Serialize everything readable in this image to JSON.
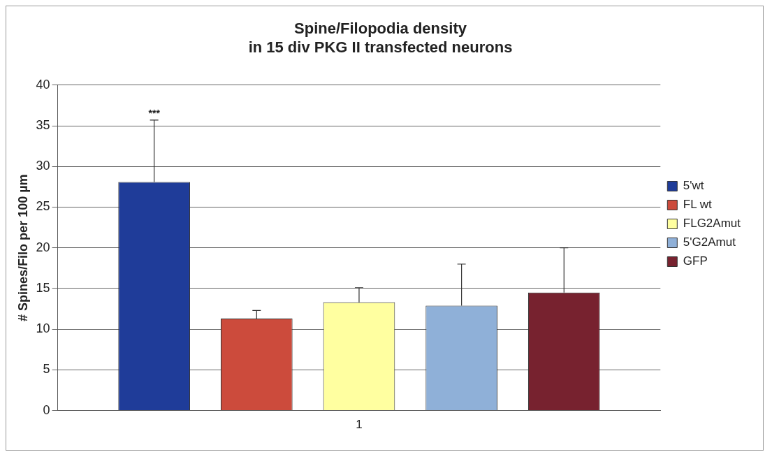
{
  "chart_data": {
    "type": "bar",
    "title": "Spine/Filopodia density\nin 15 div PKG II transfected neurons",
    "ylabel": "# Spines/Filo per 100 µm",
    "categories": [
      "1"
    ],
    "series": [
      {
        "name": "5'wt",
        "color": "#1f3c99",
        "values": [
          28.1
        ],
        "errors": [
          [
            28.1,
            35.7
          ]
        ]
      },
      {
        "name": "FL wt",
        "color": "#cc4b3c",
        "values": [
          11.3
        ],
        "errors": [
          [
            11.3,
            12.3
          ]
        ]
      },
      {
        "name": "FLG2Amut",
        "color": "#ffffa0",
        "values": [
          13.3
        ],
        "errors": [
          [
            13.3,
            15.1
          ]
        ]
      },
      {
        "name": "5'G2Amut",
        "color": "#8fb0d8",
        "values": [
          12.9
        ],
        "errors": [
          [
            12.9,
            18.0
          ]
        ]
      },
      {
        "name": "GFP",
        "color": "#77222f",
        "values": [
          14.5
        ],
        "errors": [
          [
            14.5,
            20.0
          ]
        ]
      }
    ],
    "annotations": [
      "***"
    ],
    "ylim": [
      0,
      40
    ],
    "yticks": [
      0,
      5,
      10,
      15,
      20,
      25,
      30,
      35,
      40
    ],
    "grid": "y",
    "legend": "right"
  }
}
